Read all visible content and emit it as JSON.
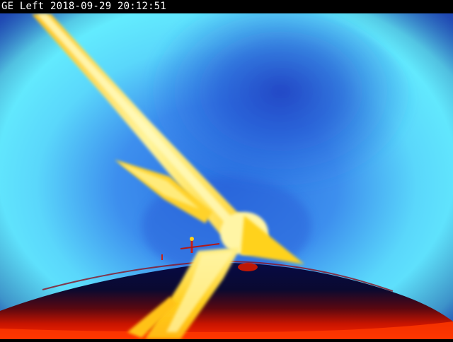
{
  "overlay": {
    "camera_label": "GE Left 2018-09-29 20:12:51"
  },
  "image": {
    "kind": "thermal-camera-frame",
    "palette": [
      "#62f6ff",
      "#2f7be6",
      "#1830b5",
      "#050a3a",
      "#c81400",
      "#ff3a00",
      "#ffd21a",
      "#fff8a0"
    ],
    "subjects": [
      "sky",
      "turbine-blade-upper",
      "turbine-blade-short",
      "turbine-hub",
      "nacelle-roof",
      "turbine-blade-lower",
      "roof-antenna"
    ]
  }
}
